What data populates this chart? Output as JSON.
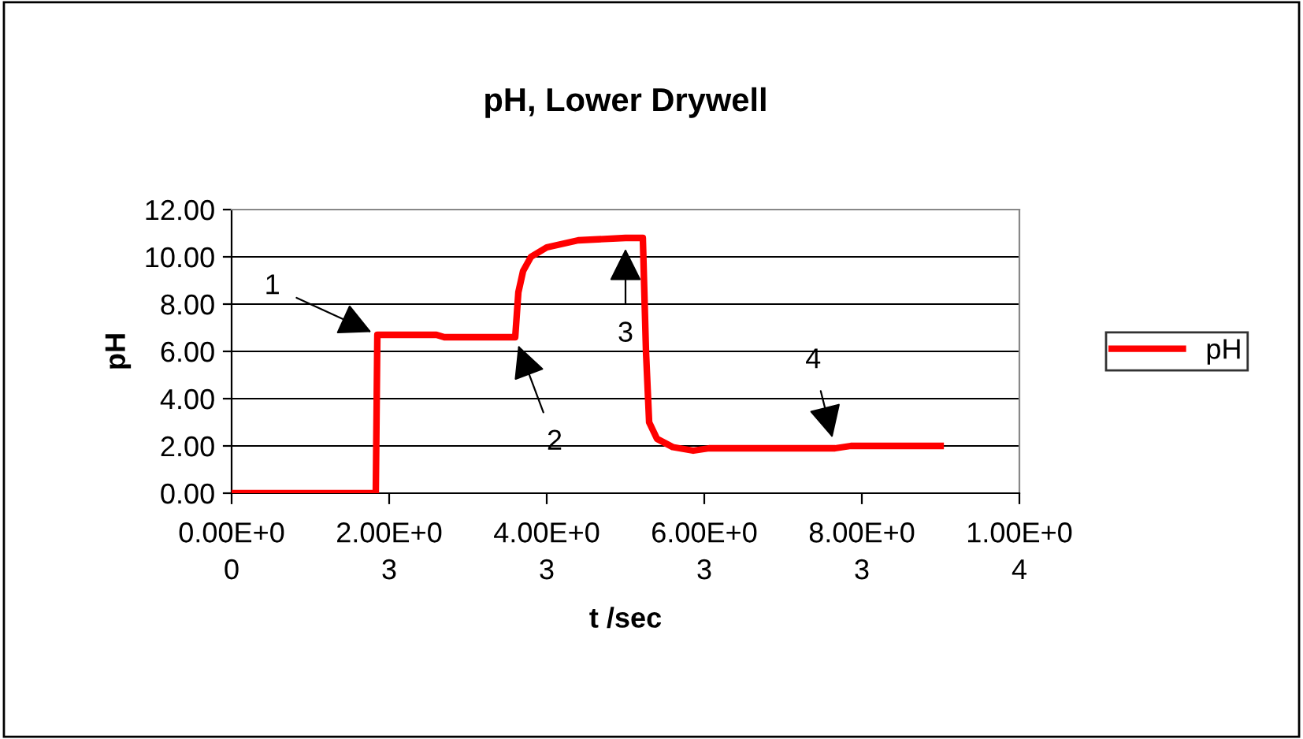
{
  "chart_data": {
    "type": "line",
    "title": "pH, Lower Drywell",
    "xlabel": "t /sec",
    "ylabel": "pH",
    "series": [
      {
        "name": "pH",
        "color": "#ff0000",
        "x": [
          0,
          1830,
          1850,
          2600,
          2700,
          3600,
          3640,
          3700,
          3800,
          4000,
          4400,
          5000,
          5220,
          5260,
          5300,
          5400,
          5600,
          5860,
          6060,
          7660,
          7860,
          9000
        ],
        "values": [
          0,
          0,
          6.7,
          6.7,
          6.6,
          6.6,
          8.5,
          9.4,
          10,
          10.4,
          10.7,
          10.8,
          10.8,
          6,
          3,
          2.3,
          1.95,
          1.8,
          1.9,
          1.9,
          2.0,
          2.0
        ]
      }
    ],
    "xlim": [
      0,
      10000
    ],
    "xticks": [
      {
        "value": 0,
        "label": "0.00E+00"
      },
      {
        "value": 2000,
        "label": "2.00E+03"
      },
      {
        "value": 4000,
        "label": "4.00E+03"
      },
      {
        "value": 6000,
        "label": "6.00E+03"
      },
      {
        "value": 8000,
        "label": "8.00E+03"
      },
      {
        "value": 10000,
        "label": "1.00E+04"
      }
    ],
    "ylim": [
      0,
      12
    ],
    "yticks": [
      {
        "value": 0,
        "label": "0.00"
      },
      {
        "value": 2,
        "label": "2.00"
      },
      {
        "value": 4,
        "label": "4.00"
      },
      {
        "value": 6,
        "label": "6.00"
      },
      {
        "value": 8,
        "label": "8.00"
      },
      {
        "value": 10,
        "label": "10.00"
      },
      {
        "value": 12,
        "label": "12.00"
      }
    ],
    "annotations": [
      {
        "text": "1",
        "x": 1850,
        "y": 6.7
      },
      {
        "text": "2",
        "x": 3600,
        "y": 6.6
      },
      {
        "text": "3",
        "x": 5000,
        "y": 10.8
      },
      {
        "text": "4",
        "x": 7660,
        "y": 1.9
      }
    ],
    "grid": "y",
    "legend": "right",
    "marker": "none",
    "line_style": "solid"
  }
}
